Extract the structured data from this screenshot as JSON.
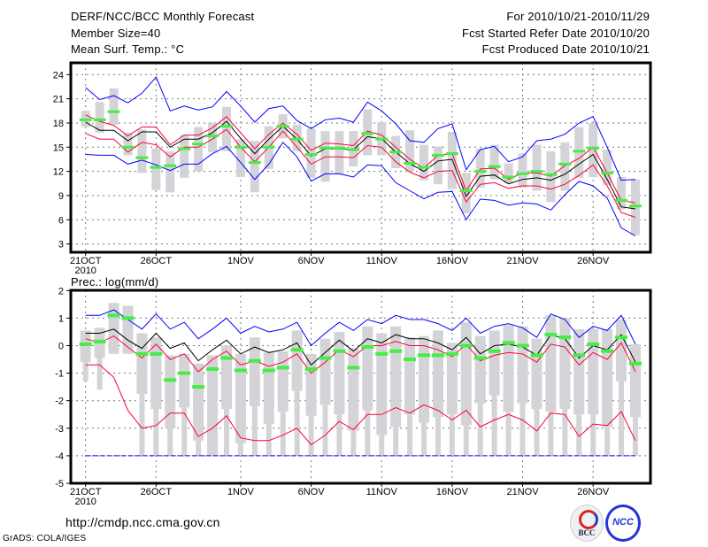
{
  "header": {
    "title": "DERF/NCC/BCC Monthly Forecast",
    "member_size": "Member Size=40",
    "variable": "Mean Surf. Temp.: °C",
    "period": "For 2010/10/21-2010/11/29",
    "started": "Fcst Started Refer Date 2010/10/20",
    "produced": "Fcst Produced Date 2010/10/21"
  },
  "footer": {
    "url": "http://cmdp.ncc.cma.gov.cn",
    "grads": "GrADS: COLA/IGES",
    "logo1": "BCC",
    "logo2": "NCC"
  },
  "colors": {
    "max_min": "#0000ff",
    "spread": "#ff0033",
    "mean": "#000000",
    "box": "#d4d4d8",
    "obs": "#44ee44"
  },
  "chart_data": [
    {
      "type": "line",
      "title": "Mean Surf. Temp.: °C",
      "x_start": "2010-10-21",
      "n_days": 40,
      "ylim": [
        2,
        25.5
      ],
      "yticks": [
        3,
        6,
        9,
        12,
        15,
        18,
        21,
        24
      ],
      "ytick_labels": [
        "3",
        "6",
        "9",
        "12",
        "15",
        "18",
        "21",
        "24"
      ],
      "xticks": [
        0,
        5,
        11,
        16,
        21,
        26,
        31,
        36
      ],
      "xtick_labels": [
        "21OCT",
        "26OCT",
        "1NOV",
        "6NOV",
        "11NOV",
        "16NOV",
        "21NOV",
        "26NOV"
      ],
      "year_label": "2010",
      "grid": true,
      "series": [
        {
          "name": "max",
          "color": "#0000ff",
          "values": [
            22.4,
            20.9,
            21.4,
            20.5,
            21.7,
            23.7,
            19.5,
            20.1,
            19.6,
            20.0,
            21.9,
            20.1,
            18.1,
            19.8,
            20.1,
            18.3,
            17.3,
            18.4,
            18.6,
            18.1,
            20.6,
            19.5,
            17.9,
            15.8,
            15.6,
            17.3,
            17.9,
            12.2,
            14.7,
            15.1,
            13.2,
            13.8,
            15.8,
            16.0,
            16.6,
            18.0,
            18.8,
            15.0,
            10.9,
            11.0
          ]
        },
        {
          "name": "upper",
          "color": "#ff0033",
          "values": [
            19.0,
            18.2,
            17.7,
            16.4,
            17.5,
            17.5,
            15.3,
            16.5,
            16.5,
            17.4,
            18.8,
            16.8,
            14.8,
            16.6,
            18.0,
            16.6,
            14.6,
            15.5,
            15.4,
            15.2,
            17.0,
            16.5,
            15.0,
            13.5,
            12.4,
            14.0,
            14.2,
            9.6,
            12.3,
            12.4,
            11.0,
            11.8,
            11.8,
            11.4,
            12.7,
            13.6,
            15.0,
            11.8,
            8.4,
            8.1
          ]
        },
        {
          "name": "mean",
          "color": "#000000",
          "values": [
            18.1,
            17.1,
            17.1,
            15.8,
            16.9,
            16.9,
            15.0,
            16.0,
            16.0,
            16.8,
            18.2,
            16.1,
            14.2,
            16.0,
            17.6,
            16.0,
            13.9,
            14.8,
            14.8,
            14.7,
            16.3,
            16.05,
            14.4,
            12.95,
            12.0,
            13.3,
            13.5,
            8.9,
            11.4,
            11.55,
            10.45,
            11.0,
            11.2,
            10.9,
            11.65,
            12.9,
            14.1,
            11.0,
            7.6,
            7.35
          ]
        },
        {
          "name": "lower",
          "color": "#ff0033",
          "values": [
            16.7,
            16.0,
            16.0,
            14.4,
            15.6,
            15.3,
            13.8,
            15.0,
            15.0,
            16.0,
            17.2,
            15.0,
            13.2,
            15.0,
            17.0,
            15.0,
            12.9,
            13.8,
            13.8,
            13.7,
            15.2,
            15.0,
            13.2,
            11.9,
            11.2,
            12.0,
            12.1,
            8.2,
            10.4,
            10.6,
            9.9,
            10.2,
            10.2,
            9.8,
            10.4,
            11.5,
            12.8,
            10.2,
            6.9,
            6.3
          ]
        },
        {
          "name": "min",
          "color": "#0000ff",
          "values": [
            14.1,
            14.0,
            14.0,
            12.9,
            13.4,
            12.8,
            12.1,
            12.9,
            12.9,
            14.2,
            15.1,
            13.1,
            11.0,
            12.9,
            15.6,
            13.8,
            10.8,
            11.7,
            11.7,
            11.3,
            12.8,
            12.7,
            10.6,
            9.6,
            8.6,
            9.4,
            9.5,
            6.0,
            8.55,
            8.4,
            7.8,
            8.1,
            7.95,
            7.2,
            9.1,
            10.75,
            10.2,
            8.7,
            5.0,
            4.0
          ]
        }
      ],
      "box_lo": [
        17.5,
        16.8,
        17.8,
        14.0,
        11.8,
        9.7,
        9.4,
        11.2,
        12.0,
        14.4,
        14.5,
        11.3,
        9.4,
        12.3,
        16.1,
        14.5,
        11.2,
        10.7,
        11.6,
        12.6,
        14.0,
        14.0,
        12.4,
        12.0,
        10.9,
        10.4,
        9.8,
        6.8,
        10.0,
        11.0,
        10.5,
        10.0,
        9.6,
        8.2,
        9.6,
        11.2,
        11.3,
        10.3,
        7.3,
        4.1
      ],
      "box_hi": [
        19.5,
        20.6,
        22.3,
        16.8,
        17.2,
        14.8,
        14.5,
        16.5,
        17.5,
        18.0,
        20.0,
        16.0,
        15.8,
        17.6,
        19.1,
        17.8,
        17.3,
        17.0,
        17.0,
        17.0,
        19.7,
        18.1,
        16.4,
        17.1,
        15.3,
        15.1,
        16.9,
        11.8,
        14.8,
        15.3,
        13.0,
        14.2,
        15.3,
        14.5,
        15.6,
        17.5,
        18.0,
        14.7,
        11.3,
        11.0
      ],
      "marker": [
        18.4,
        18.4,
        19.4,
        15.0,
        13.7,
        12.5,
        12.7,
        14.8,
        15.4,
        16.4,
        17.6,
        15.0,
        13.1,
        15.0,
        17.6,
        16.0,
        14.1,
        14.9,
        14.9,
        14.7,
        16.7,
        16.0,
        14.4,
        13.0,
        12.5,
        14.0,
        14.2,
        9.6,
        12.0,
        12.6,
        11.3,
        11.7,
        12.0,
        11.6,
        12.9,
        14.5,
        14.9,
        11.8,
        8.4,
        7.7
      ]
    },
    {
      "type": "line",
      "title": "Prec.: log(mm/d)",
      "x_start": "2010-10-21",
      "n_days": 40,
      "ylim": [
        -5,
        2
      ],
      "yticks": [
        -5,
        -4,
        -3,
        -2,
        -1,
        0,
        1,
        2
      ],
      "ytick_labels": [
        "-5",
        "-4",
        "-3",
        "-2",
        "-1",
        "0",
        "1",
        "2"
      ],
      "xticks": [
        0,
        5,
        11,
        16,
        21,
        26,
        31,
        36
      ],
      "xtick_labels": [
        "21OCT",
        "26OCT",
        "1NOV",
        "6NOV",
        "11NOV",
        "16NOV",
        "21NOV",
        "26NOV"
      ],
      "year_label": "2010",
      "grid": true,
      "series": [
        {
          "name": "max",
          "color": "#0000ff",
          "values": [
            1.1,
            1.1,
            1.3,
            0.95,
            0.6,
            1.15,
            0.6,
            0.85,
            0.25,
            0.6,
            1.0,
            0.45,
            0.7,
            0.5,
            0.6,
            0.85,
            0.0,
            0.45,
            0.85,
            0.55,
            0.95,
            0.8,
            1.1,
            0.95,
            0.95,
            0.8,
            0.55,
            1.0,
            0.45,
            0.7,
            0.8,
            0.65,
            0.3,
            1.15,
            0.95,
            0.3,
            0.7,
            0.55,
            1.1,
            0.05
          ]
        },
        {
          "name": "mean",
          "color": "#000000",
          "values": [
            0.45,
            0.45,
            0.6,
            0.2,
            -0.1,
            0.45,
            -0.1,
            0.1,
            -0.55,
            -0.15,
            0.2,
            -0.3,
            -0.05,
            -0.25,
            -0.15,
            0.1,
            -0.7,
            -0.25,
            0.2,
            -0.2,
            0.25,
            0.1,
            0.4,
            0.25,
            0.25,
            0.1,
            -0.15,
            0.3,
            -0.3,
            0.0,
            0.05,
            -0.05,
            -0.35,
            0.4,
            0.25,
            -0.45,
            0.0,
            -0.15,
            0.4,
            -0.6
          ]
        },
        {
          "name": "upper",
          "color": "#ff0033",
          "values": [
            0.25,
            0.1,
            0.35,
            -0.05,
            -0.45,
            0.05,
            -0.5,
            -0.3,
            -0.95,
            -0.5,
            -0.2,
            -0.7,
            -0.55,
            -0.75,
            -0.6,
            -0.3,
            -1.0,
            -0.6,
            -0.15,
            -0.4,
            0.0,
            0.0,
            0.15,
            0.0,
            0.0,
            -0.15,
            -0.4,
            0.05,
            -0.55,
            -0.35,
            -0.25,
            -0.3,
            -0.6,
            0.05,
            -0.05,
            -0.7,
            -0.25,
            -0.5,
            0.1,
            -0.95
          ]
        },
        {
          "name": "lower",
          "color": "#ff0033",
          "values": [
            -0.7,
            -0.7,
            -1.15,
            -2.35,
            -3.0,
            -2.9,
            -2.45,
            -2.45,
            -3.3,
            -3.0,
            -2.55,
            -3.35,
            -3.45,
            -3.45,
            -3.25,
            -3.0,
            -3.6,
            -3.25,
            -2.75,
            -3.05,
            -2.5,
            -2.5,
            -2.25,
            -2.45,
            -2.15,
            -2.35,
            -2.7,
            -2.35,
            -2.95,
            -2.7,
            -2.5,
            -2.7,
            -3.1,
            -2.45,
            -2.5,
            -3.3,
            -2.85,
            -2.9,
            -2.4,
            -3.45
          ]
        },
        {
          "name": "min",
          "color": "#0000ff",
          "values": [
            -4,
            -4,
            -4,
            -4,
            -4,
            -4,
            -4,
            -4,
            -4,
            -4,
            -4,
            -4,
            -4,
            -4,
            -4,
            -4,
            -4,
            -4,
            -4,
            -4,
            -4,
            -4,
            -4,
            -4,
            -4,
            -4,
            -4,
            -4,
            -4,
            -4,
            -4,
            -4,
            -4,
            -4,
            -4,
            -4,
            -4,
            -4,
            -4,
            -4
          ]
        }
      ],
      "box_lo": [
        -0.6,
        -0.45,
        -0.3,
        -0.3,
        -1.75,
        -2.3,
        -3.0,
        -2.25,
        -3.45,
        -4,
        -2.3,
        -3.55,
        -2.2,
        -2.85,
        -2.4,
        -1.65,
        -2.55,
        -2.15,
        -2.5,
        -3.1,
        -2.35,
        -3.25,
        -2.95,
        -2.5,
        -2.8,
        -2.6,
        -2.5,
        -2.9,
        -2.1,
        -1.8,
        -2.4,
        -2.1,
        -2.3,
        -2.4,
        -2.3,
        -2.5,
        -2.5,
        -2.95,
        -1.3,
        -2.6
      ],
      "box_hi": [
        0.55,
        0.65,
        1.55,
        1.45,
        0.45,
        0.3,
        -0.35,
        -0.3,
        -0.65,
        -0.35,
        0.0,
        -0.3,
        0.3,
        -0.25,
        -0.2,
        0.55,
        -0.3,
        0.25,
        0.5,
        -0.1,
        0.7,
        0.45,
        0.7,
        0.3,
        0.35,
        0.55,
        0.1,
        0.85,
        0.35,
        0.55,
        0.75,
        0.7,
        0.25,
        1.1,
        1.0,
        0.6,
        0.6,
        0.6,
        0.95,
        0.05
      ],
      "whisk_lo": [
        -1.3,
        -1.6,
        -0.3,
        -0.3,
        -4,
        -4,
        -4,
        -4,
        -4,
        -4,
        -4,
        -4,
        -4,
        -4,
        -4,
        -4,
        -4,
        -4,
        -4,
        -4,
        -4,
        -4,
        -4,
        -4,
        -4,
        -4,
        -4,
        -4,
        -4,
        -4,
        -4,
        -4,
        -4,
        -4,
        -4,
        -4,
        -4,
        -4,
        -4,
        -4
      ],
      "marker": [
        0.05,
        0.15,
        1.1,
        1.0,
        -0.3,
        -0.3,
        -1.25,
        -1.0,
        -1.5,
        -0.85,
        -0.45,
        -0.9,
        -0.55,
        -0.9,
        -0.8,
        -0.15,
        -0.85,
        -0.45,
        -0.2,
        -0.8,
        -0.05,
        -0.3,
        -0.2,
        -0.5,
        -0.35,
        -0.35,
        -0.3,
        0.0,
        -0.45,
        -0.2,
        0.1,
        0.0,
        -0.35,
        0.4,
        0.3,
        -0.35,
        0.05,
        -0.2,
        0.3,
        -0.65
      ]
    }
  ]
}
